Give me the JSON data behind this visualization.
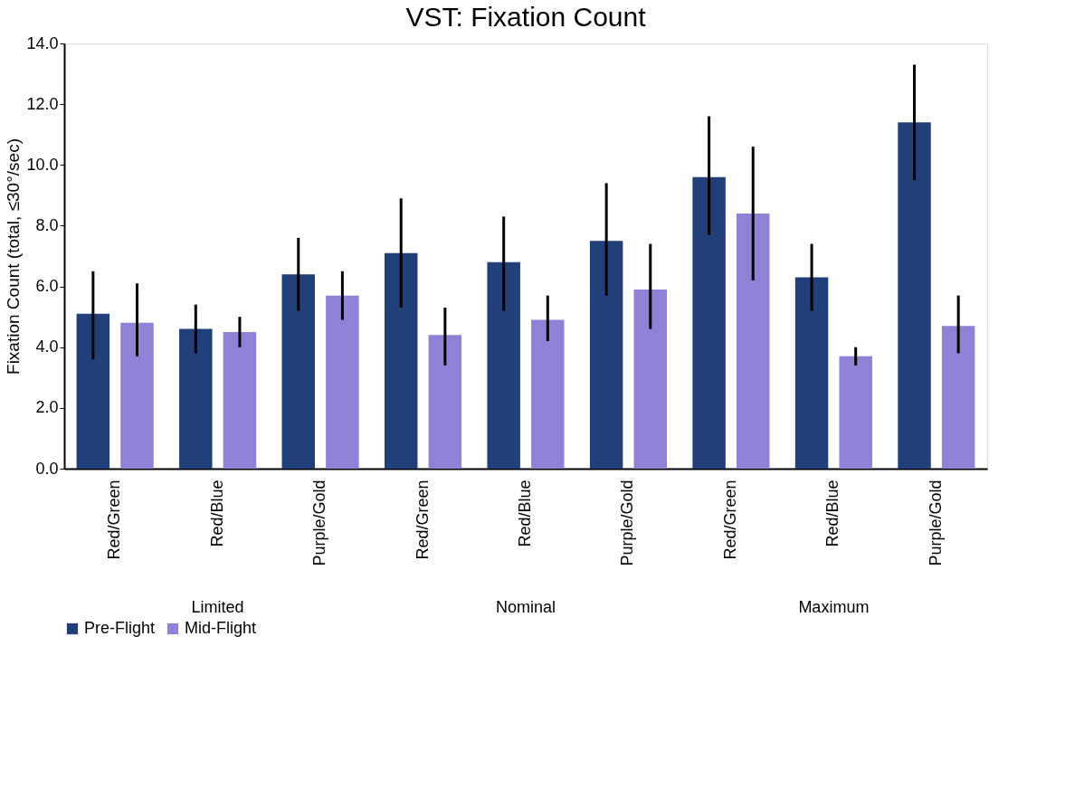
{
  "chart_data": {
    "type": "bar",
    "title": "VST: Fixation Count",
    "ylabel": "Fixation Count (total, ≤30°/sec)",
    "categories": [
      "Red/Green",
      "Red/Blue",
      "Purple/Gold",
      "Red/Green",
      "Red/Blue",
      "Purple/Gold",
      "Red/Green",
      "Red/Blue",
      "Purple/Gold"
    ],
    "series": [
      {
        "name": "Pre-Flight",
        "color": "#213f78",
        "values": [
          5.1,
          4.6,
          6.4,
          7.1,
          6.8,
          7.5,
          9.6,
          6.3,
          11.4
        ],
        "errors": [
          [
            3.6,
            6.5
          ],
          [
            3.8,
            5.4
          ],
          [
            5.2,
            7.6
          ],
          [
            5.3,
            8.9
          ],
          [
            5.2,
            8.3
          ],
          [
            5.7,
            9.4
          ],
          [
            7.7,
            11.6
          ],
          [
            5.2,
            7.4
          ],
          [
            9.5,
            13.3
          ]
        ]
      },
      {
        "name": "Mid-Flight",
        "color": "#8e82d6",
        "values": [
          4.8,
          4.5,
          5.7,
          4.4,
          4.9,
          5.9,
          8.4,
          3.7,
          4.7
        ],
        "errors": [
          [
            3.7,
            6.1
          ],
          [
            4.0,
            5.0
          ],
          [
            4.9,
            6.5
          ],
          [
            3.4,
            5.3
          ],
          [
            4.2,
            5.7
          ],
          [
            4.6,
            7.4
          ],
          [
            6.2,
            10.6
          ],
          [
            3.4,
            4.0
          ],
          [
            3.8,
            5.7
          ]
        ]
      }
    ],
    "annotations": [
      "Limited",
      "Nominal",
      "Maximum"
    ],
    "ylim": [
      0,
      14
    ],
    "yticks": [
      {
        "value": 0,
        "label": "0.0"
      },
      {
        "value": 2,
        "label": "2.0"
      },
      {
        "value": 4,
        "label": "4.0"
      },
      {
        "value": 6,
        "label": "6.0"
      },
      {
        "value": 8,
        "label": "8.0"
      },
      {
        "value": 10,
        "label": "10.0"
      },
      {
        "value": 12,
        "label": "12.0"
      },
      {
        "value": 14,
        "label": "14.0"
      }
    ],
    "grid": false,
    "legend": "bottom"
  }
}
